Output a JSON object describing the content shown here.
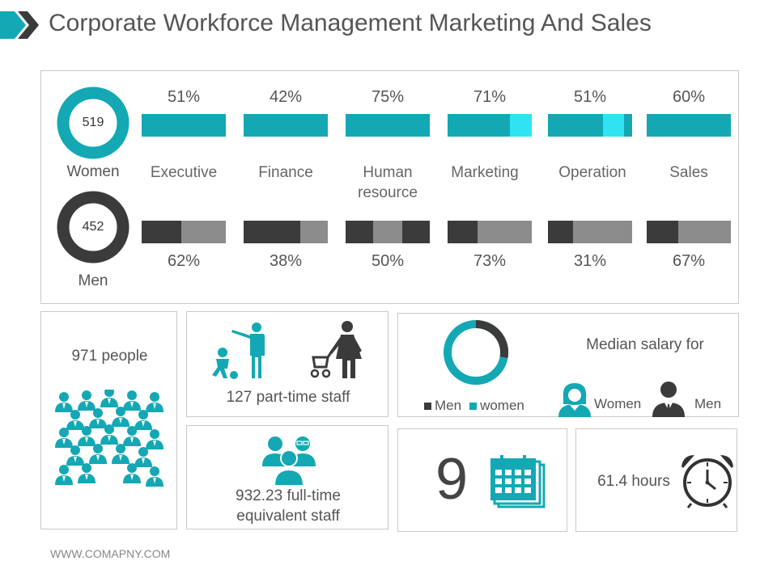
{
  "header": {
    "title": "Corporate Workforce Management Marketing And Sales"
  },
  "colors": {
    "teal": "#13a8b4",
    "light_teal": "#2fe3f0",
    "dark": "#3b3b3b",
    "grey": "#8c8c8c"
  },
  "gender": {
    "women": {
      "label": "Women",
      "count": "519"
    },
    "men": {
      "label": "Men",
      "count": "452"
    }
  },
  "departments": [
    {
      "name": "Executive",
      "women_pct": "51%",
      "men_pct": "62%"
    },
    {
      "name": "Finance",
      "women_pct": "42%",
      "men_pct": "38%"
    },
    {
      "name": "Human resource",
      "women_pct": "75%",
      "men_pct": "50%"
    },
    {
      "name": "Marketing",
      "women_pct": "71%",
      "men_pct": "73%"
    },
    {
      "name": "Operation",
      "women_pct": "51%",
      "men_pct": "31%"
    },
    {
      "name": "Sales",
      "women_pct": "60%",
      "men_pct": "67%"
    }
  ],
  "people": {
    "text": "971 people"
  },
  "part_time": {
    "text": "127 part-time staff"
  },
  "full_time": {
    "text": "932.23 full-time equivalent staff"
  },
  "salary": {
    "title": "Median salary for",
    "legend_men": "Men",
    "legend_women": "women",
    "women_label": "Women",
    "men_label": "Men"
  },
  "calendar": {
    "value": "9"
  },
  "hours": {
    "text": "61.4 hours"
  },
  "footer": {
    "text": "WWW.COMAPNY.COM"
  }
}
